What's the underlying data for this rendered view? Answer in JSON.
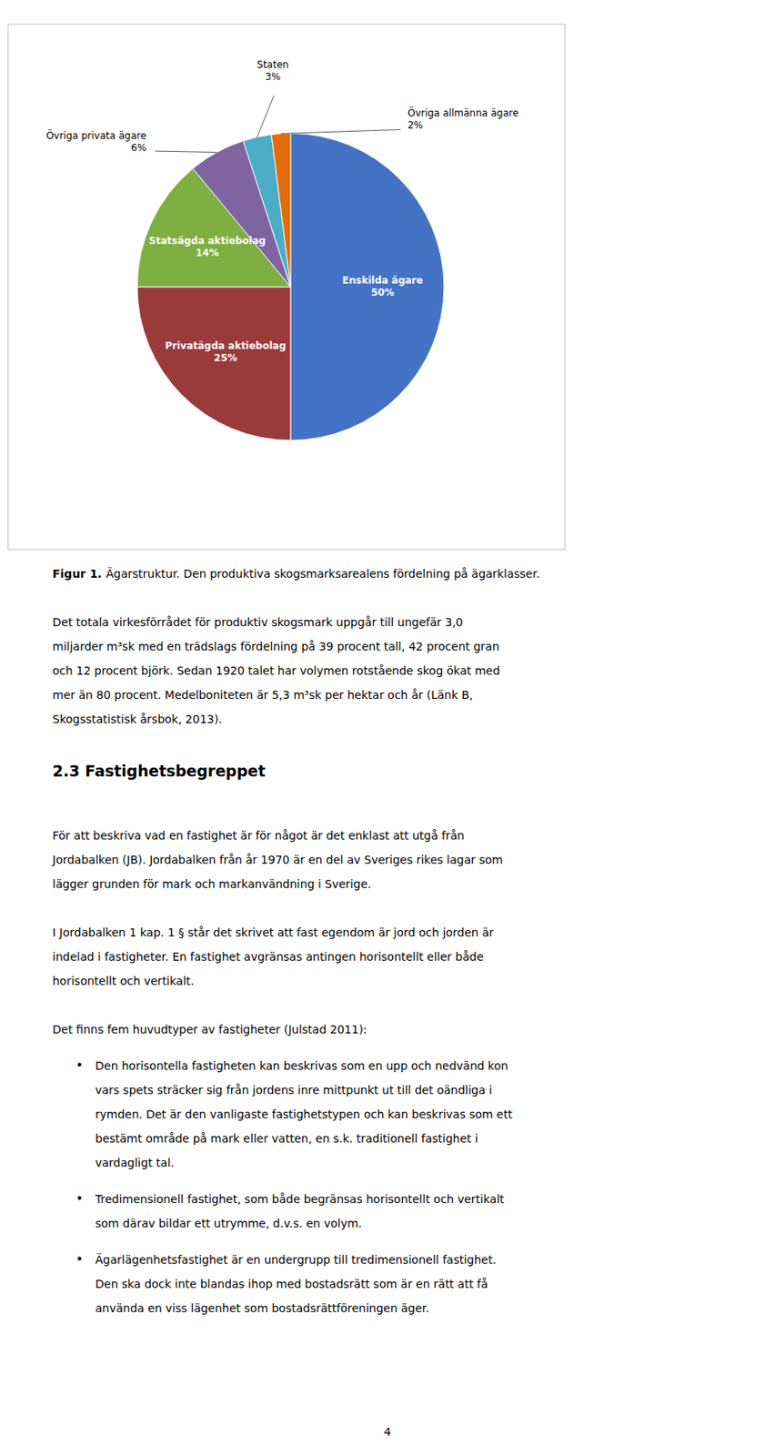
{
  "chart_data": {
    "type": "pie",
    "categories": [
      "Enskilda ägare",
      "Privatägda aktiebolag",
      "Statsägda aktiebolag",
      "Övriga privata ägare",
      "Staten",
      "Övriga allmänna ägare"
    ],
    "values": [
      50,
      25,
      14,
      6,
      3,
      2
    ],
    "value_labels": [
      "50%",
      "25%",
      "14%",
      "6%",
      "3%",
      "2%"
    ],
    "colors": [
      "#4472C4",
      "#9B3A3A",
      "#7DB040",
      "#8064A2",
      "#4BACC6",
      "#E36C0A"
    ],
    "data_labels": true
  },
  "page": {
    "caption": [
      "Figur 1.",
      "Ägarstruktur. Den produktiva skogsmarksarealens fördelning på ägarklasser."
    ],
    "bullet": "•",
    "blocks": [
      {
        "type": "paragraph",
        "lines": [
          "Det totala virkesförrådet för produktiv skogsmark uppgår till ungefär 3,0",
          "miljarder m³sk med en trädslags fördelning på 39 procent tall, 42 procent gran",
          "och 12 procent björk. Sedan 1920 talet har volymen rotstående skog ökat med",
          "mer än 80 procent. Medelboniteten är 5,3 m³sk per hektar och år (Länk B,",
          "Skogsstatistisk årsbok, 2013)."
        ]
      },
      {
        "type": "heading",
        "lines": [
          "2.3 Fastighetsbegreppet"
        ]
      },
      {
        "type": "paragraph",
        "lines": [
          "För att beskriva vad en fastighet är för något är det enklast att utgå från",
          "Jordabalken (JB). Jordabalken från år 1970 är en del av Sveriges rikes lagar som",
          "lägger grunden för mark och markanvändning i Sverige."
        ]
      },
      {
        "type": "paragraph",
        "lines": [
          "I Jordabalken 1 kap. 1 § står det skrivet att fast egendom är jord och jorden är",
          "indelad i fastigheter. En fastighet avgränsas antingen horisontellt eller både",
          "horisontellt och vertikalt."
        ]
      },
      {
        "type": "paragraph",
        "lines": [
          "Det finns fem huvudtyper av fastigheter (Julstad 2011):"
        ]
      },
      {
        "type": "bullet",
        "lines": [
          "Den horisontella fastigheten kan beskrivas som en upp och nedvänd kon",
          "vars spets sträcker sig från jordens inre mittpunkt ut till det oändliga i",
          "rymden. Det är den vanligaste fastighetstypen och kan beskrivas som ett",
          "bestämt område på mark eller vatten, en s.k. traditionell fastighet i",
          "vardagligt tal."
        ]
      },
      {
        "type": "bullet",
        "lines": [
          "Tredimensionell fastighet, som både begränsas horisontellt och vertikalt",
          "som därav bildar ett utrymme, d.v.s. en volym."
        ]
      },
      {
        "type": "bullet",
        "lines": [
          "Ägarlägenhetsfastighet är en undergrupp till tredimensionell fastighet.",
          "Den ska dock inte blandas ihop med bostadsrätt som är en rätt att få",
          "använda en viss lägenhet som bostadsrättföreningen äger."
        ]
      }
    ],
    "page_number": "4"
  }
}
